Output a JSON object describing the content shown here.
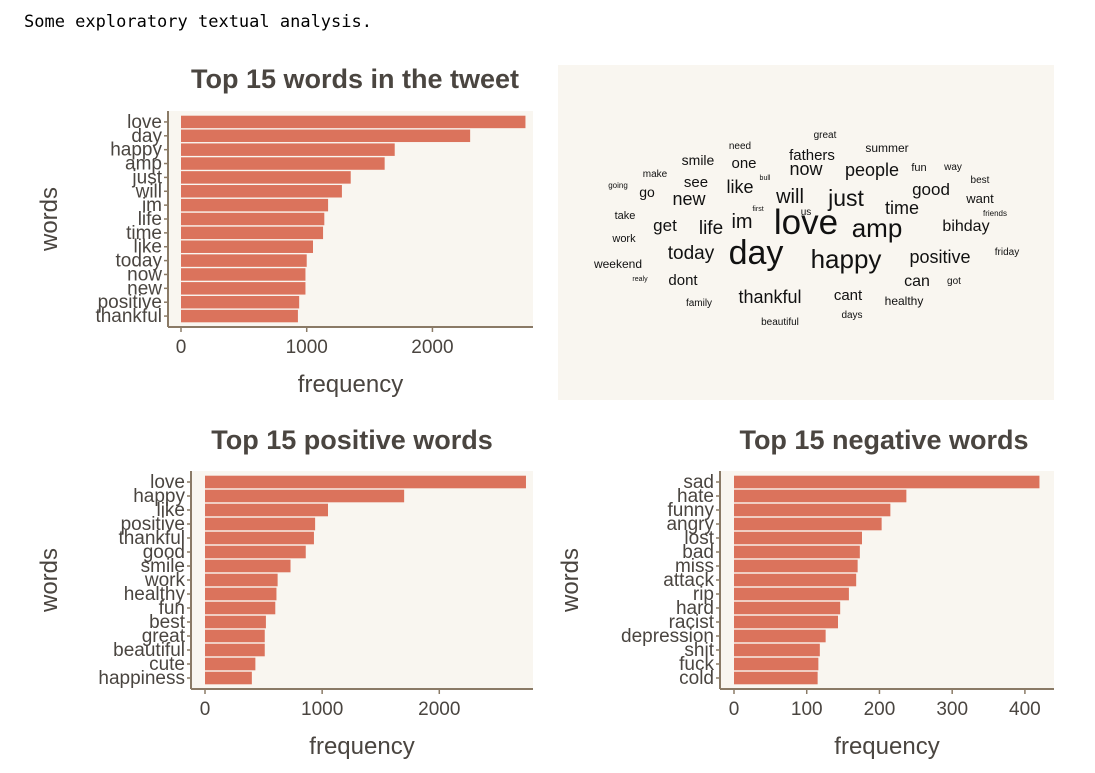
{
  "intro": "Some exploratory textual analysis.",
  "colors": {
    "bar": "#db735c",
    "panel": "#f9f6f0",
    "axis": "#8a7a66",
    "text": "#4a4540"
  },
  "chart_data": [
    {
      "type": "bar",
      "orientation": "horizontal",
      "title": "Top 15 words in the tweet",
      "xlabel": "frequency",
      "ylabel": "words",
      "xlim": [
        0,
        2800
      ],
      "xticks": [
        0,
        1000,
        2000
      ],
      "categories": [
        "love",
        "day",
        "happy",
        "amp",
        "just",
        "will",
        "im",
        "life",
        "time",
        "like",
        "today",
        "now",
        "new",
        "positive",
        "thankful"
      ],
      "values": [
        2740,
        2300,
        1700,
        1620,
        1350,
        1280,
        1170,
        1140,
        1130,
        1050,
        1000,
        990,
        990,
        940,
        930
      ]
    },
    {
      "type": "bar",
      "orientation": "horizontal",
      "title": "Top 15 positive words",
      "xlabel": "frequency",
      "ylabel": "words",
      "xlim": [
        0,
        2800
      ],
      "xticks": [
        0,
        1000,
        2000
      ],
      "categories": [
        "love",
        "happy",
        "like",
        "positive",
        "thankful",
        "good",
        "smile",
        "work",
        "healthy",
        "fun",
        "best",
        "great",
        "beautiful",
        "cute",
        "happiness"
      ],
      "values": [
        2740,
        1700,
        1050,
        940,
        930,
        860,
        730,
        620,
        610,
        600,
        520,
        510,
        510,
        430,
        400
      ]
    },
    {
      "type": "bar",
      "orientation": "horizontal",
      "title": "Top 15 negative words",
      "xlabel": "frequency",
      "ylabel": "words",
      "xlim": [
        0,
        440
      ],
      "xticks": [
        0,
        100,
        200,
        300,
        400
      ],
      "categories": [
        "sad",
        "hate",
        "funny",
        "angry",
        "lost",
        "bad",
        "miss",
        "attack",
        "rip",
        "hard",
        "racist",
        "depression",
        "shit",
        "fuck",
        "cold"
      ],
      "values": [
        420,
        237,
        215,
        203,
        176,
        173,
        170,
        168,
        158,
        146,
        143,
        126,
        118,
        116,
        115
      ]
    }
  ],
  "wordcloud": [
    {
      "text": "love",
      "size": 35
    },
    {
      "text": "day",
      "size": 34
    },
    {
      "text": "happy",
      "size": 26
    },
    {
      "text": "amp",
      "size": 26
    },
    {
      "text": "just",
      "size": 23
    },
    {
      "text": "will",
      "size": 20
    },
    {
      "text": "im",
      "size": 20
    },
    {
      "text": "life",
      "size": 19
    },
    {
      "text": "today",
      "size": 19
    },
    {
      "text": "time",
      "size": 18
    },
    {
      "text": "positive",
      "size": 18
    },
    {
      "text": "like",
      "size": 18
    },
    {
      "text": "new",
      "size": 18
    },
    {
      "text": "now",
      "size": 18
    },
    {
      "text": "people",
      "size": 18
    },
    {
      "text": "thankful",
      "size": 18
    },
    {
      "text": "good",
      "size": 17
    },
    {
      "text": "bihday",
      "size": 16
    },
    {
      "text": "get",
      "size": 17
    },
    {
      "text": "dont",
      "size": 15
    },
    {
      "text": "can",
      "size": 16
    },
    {
      "text": "cant",
      "size": 15
    },
    {
      "text": "fathers",
      "size": 15
    },
    {
      "text": "one",
      "size": 15
    },
    {
      "text": "see",
      "size": 15
    },
    {
      "text": "go",
      "size": 14
    },
    {
      "text": "smile",
      "size": 14
    },
    {
      "text": "want",
      "size": 13
    },
    {
      "text": "summer",
      "size": 12
    },
    {
      "text": "weekend",
      "size": 12
    },
    {
      "text": "healthy",
      "size": 12
    },
    {
      "text": "work",
      "size": 11
    },
    {
      "text": "take",
      "size": 11
    },
    {
      "text": "fun",
      "size": 11
    },
    {
      "text": "need",
      "size": 10
    },
    {
      "text": "great",
      "size": 10
    },
    {
      "text": "make",
      "size": 10
    },
    {
      "text": "way",
      "size": 10
    },
    {
      "text": "best",
      "size": 10
    },
    {
      "text": "friday",
      "size": 10
    },
    {
      "text": "family",
      "size": 10
    },
    {
      "text": "beautiful",
      "size": 10
    },
    {
      "text": "days",
      "size": 10
    },
    {
      "text": "got",
      "size": 10
    },
    {
      "text": "us",
      "size": 10
    },
    {
      "text": "going",
      "size": 8
    },
    {
      "text": "bull",
      "size": 7
    },
    {
      "text": "first",
      "size": 7
    },
    {
      "text": "friends",
      "size": 8
    },
    {
      "text": "realy",
      "size": 7
    }
  ]
}
